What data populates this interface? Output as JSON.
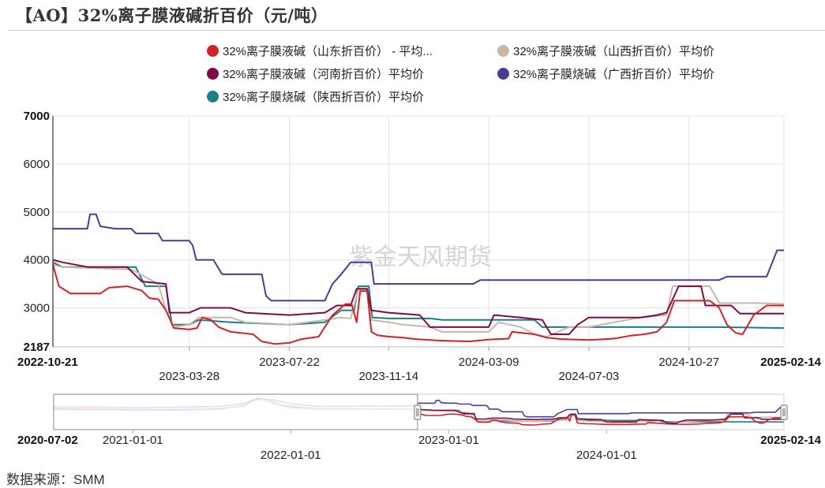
{
  "title": "【AO】32%离子膜液碱折百价（元/吨）",
  "watermark": "紫金天风期货",
  "source": "数据来源：SMM",
  "chart_data": {
    "type": "line",
    "title": "【AO】32%离子膜液碱折百价（元/吨）",
    "ylim": [
      2187,
      7000
    ],
    "yticks": [
      2187,
      3000,
      4000,
      5000,
      6000,
      7000
    ],
    "xlim": [
      "2022-10-21",
      "2025-02-14"
    ],
    "xticks_bold": [
      "2022-10-21",
      "2025-02-14"
    ],
    "xticks": [
      "2023-03-28",
      "2023-07-22",
      "2023-11-14",
      "2024-03-09",
      "2024-07-03",
      "2024-10-27"
    ],
    "grid": true,
    "legend_position": "top",
    "series": [
      {
        "name": "32%离子膜液碱（山东折百价） - 平均...",
        "color": "#d32226",
        "points": [
          [
            "2022-10-21",
            3900
          ],
          [
            "2022-10-28",
            3450
          ],
          [
            "2022-11-10",
            3300
          ],
          [
            "2022-12-15",
            3300
          ],
          [
            "2022-12-25",
            3420
          ],
          [
            "2023-01-15",
            3450
          ],
          [
            "2023-02-01",
            3360
          ],
          [
            "2023-02-10",
            3200
          ],
          [
            "2023-02-20",
            3180
          ],
          [
            "2023-03-01",
            2950
          ],
          [
            "2023-03-10",
            2580
          ],
          [
            "2023-03-28",
            2550
          ],
          [
            "2023-04-06",
            2580
          ],
          [
            "2023-04-12",
            2800
          ],
          [
            "2023-04-22",
            2750
          ],
          [
            "2023-05-01",
            2600
          ],
          [
            "2023-05-15",
            2500
          ],
          [
            "2023-06-10",
            2450
          ],
          [
            "2023-06-20",
            2300
          ],
          [
            "2023-07-05",
            2250
          ],
          [
            "2023-07-22",
            2270
          ],
          [
            "2023-08-05",
            2350
          ],
          [
            "2023-08-25",
            2400
          ],
          [
            "2023-09-10",
            2850
          ],
          [
            "2023-09-25",
            3080
          ],
          [
            "2023-10-02",
            3080
          ],
          [
            "2023-10-08",
            2700
          ],
          [
            "2023-10-12",
            3350
          ],
          [
            "2023-10-20",
            3350
          ],
          [
            "2023-10-25",
            2500
          ],
          [
            "2023-11-01",
            2430
          ],
          [
            "2023-11-14",
            2400
          ],
          [
            "2023-12-01",
            2380
          ],
          [
            "2023-12-15",
            2350
          ],
          [
            "2024-01-10",
            2320
          ],
          [
            "2024-02-15",
            2300
          ],
          [
            "2024-03-09",
            2340
          ],
          [
            "2024-04-01",
            2360
          ],
          [
            "2024-04-05",
            2500
          ],
          [
            "2024-05-01",
            2450
          ],
          [
            "2024-05-15",
            2380
          ],
          [
            "2024-06-01",
            2350
          ],
          [
            "2024-07-03",
            2330
          ],
          [
            "2024-08-01",
            2360
          ],
          [
            "2024-08-20",
            2420
          ],
          [
            "2024-09-05",
            2450
          ],
          [
            "2024-09-20",
            2500
          ],
          [
            "2024-10-01",
            2700
          ],
          [
            "2024-10-10",
            3150
          ],
          [
            "2024-11-20",
            3150
          ],
          [
            "2024-12-01",
            3000
          ],
          [
            "2024-12-10",
            2650
          ],
          [
            "2024-12-20",
            2480
          ],
          [
            "2024-12-28",
            2450
          ],
          [
            "2025-01-10",
            2850
          ],
          [
            "2025-01-25",
            3050
          ],
          [
            "2025-02-14",
            3050
          ]
        ]
      },
      {
        "name": "32%离子膜液碱（山西折百价）平均价",
        "color": "#c8b7a6",
        "points": [
          [
            "2022-10-21",
            3900
          ],
          [
            "2022-11-01",
            3850
          ],
          [
            "2023-01-20",
            3800
          ],
          [
            "2023-02-20",
            3500
          ],
          [
            "2023-03-01",
            2950
          ],
          [
            "2023-03-10",
            2600
          ],
          [
            "2023-03-28",
            2650
          ],
          [
            "2023-04-08",
            2800
          ],
          [
            "2023-05-15",
            2800
          ],
          [
            "2023-06-01",
            2700
          ],
          [
            "2023-07-22",
            2650
          ],
          [
            "2023-09-01",
            2750
          ],
          [
            "2023-09-20",
            2800
          ],
          [
            "2023-10-01",
            2780
          ],
          [
            "2023-10-10",
            3380
          ],
          [
            "2023-10-20",
            3380
          ],
          [
            "2023-10-25",
            2750
          ],
          [
            "2023-11-14",
            2700
          ],
          [
            "2023-12-01",
            2650
          ],
          [
            "2024-01-01",
            2600
          ],
          [
            "2024-01-15",
            2500
          ],
          [
            "2024-03-09",
            2500
          ],
          [
            "2024-03-20",
            2700
          ],
          [
            "2024-04-15",
            2600
          ],
          [
            "2024-05-01",
            2450
          ],
          [
            "2024-05-15",
            2400
          ],
          [
            "2024-06-10",
            2600
          ],
          [
            "2024-07-03",
            2600
          ],
          [
            "2024-08-01",
            2700
          ],
          [
            "2024-09-01",
            2800
          ],
          [
            "2024-10-01",
            2850
          ],
          [
            "2024-10-08",
            3450
          ],
          [
            "2024-11-20",
            3450
          ],
          [
            "2024-12-01",
            3100
          ],
          [
            "2025-01-15",
            3100
          ],
          [
            "2025-02-14",
            3080
          ]
        ]
      },
      {
        "name": "32%离子膜液碱（河南折百价）平均价",
        "color": "#7b0c47",
        "points": [
          [
            "2022-10-21",
            4000
          ],
          [
            "2022-11-01",
            3950
          ],
          [
            "2022-12-01",
            3850
          ],
          [
            "2023-01-15",
            3850
          ],
          [
            "2023-02-01",
            3550
          ],
          [
            "2023-03-01",
            3500
          ],
          [
            "2023-03-05",
            2900
          ],
          [
            "2023-03-28",
            2900
          ],
          [
            "2023-04-10",
            3000
          ],
          [
            "2023-05-15",
            3000
          ],
          [
            "2023-06-01",
            2900
          ],
          [
            "2023-07-22",
            2850
          ],
          [
            "2023-09-01",
            2900
          ],
          [
            "2023-09-15",
            3050
          ],
          [
            "2023-10-01",
            3050
          ],
          [
            "2023-10-08",
            3400
          ],
          [
            "2023-10-20",
            3400
          ],
          [
            "2023-10-25",
            2950
          ],
          [
            "2023-11-14",
            2900
          ],
          [
            "2023-12-20",
            2850
          ],
          [
            "2024-01-01",
            2600
          ],
          [
            "2024-03-09",
            2600
          ],
          [
            "2024-03-15",
            2850
          ],
          [
            "2024-04-15",
            2800
          ],
          [
            "2024-05-10",
            2750
          ],
          [
            "2024-05-20",
            2450
          ],
          [
            "2024-06-10",
            2450
          ],
          [
            "2024-06-20",
            2650
          ],
          [
            "2024-07-03",
            2800
          ],
          [
            "2024-09-01",
            2800
          ],
          [
            "2024-09-20",
            2850
          ],
          [
            "2024-10-01",
            2900
          ],
          [
            "2024-10-15",
            3450
          ],
          [
            "2024-11-10",
            3450
          ],
          [
            "2024-11-15",
            3050
          ],
          [
            "2024-12-15",
            3050
          ],
          [
            "2024-12-25",
            2880
          ],
          [
            "2025-02-14",
            2880
          ]
        ]
      },
      {
        "name": "32%离子膜烧碱（广西折百价）平均价",
        "color": "#4b3b97",
        "points": [
          [
            "2022-10-21",
            4650
          ],
          [
            "2022-11-30",
            4650
          ],
          [
            "2022-12-03",
            4950
          ],
          [
            "2022-12-10",
            4950
          ],
          [
            "2022-12-15",
            4700
          ],
          [
            "2023-01-01",
            4650
          ],
          [
            "2023-01-20",
            4650
          ],
          [
            "2023-01-25",
            4550
          ],
          [
            "2023-02-20",
            4550
          ],
          [
            "2023-02-25",
            4400
          ],
          [
            "2023-03-28",
            4400
          ],
          [
            "2023-04-01",
            4300
          ],
          [
            "2023-04-05",
            4000
          ],
          [
            "2023-04-25",
            4000
          ],
          [
            "2023-05-05",
            3700
          ],
          [
            "2023-06-20",
            3700
          ],
          [
            "2023-06-25",
            3250
          ],
          [
            "2023-07-01",
            3150
          ],
          [
            "2023-09-01",
            3150
          ],
          [
            "2023-09-10",
            3500
          ],
          [
            "2023-09-20",
            3700
          ],
          [
            "2023-10-01",
            3950
          ],
          [
            "2023-10-25",
            3950
          ],
          [
            "2023-10-28",
            3500
          ],
          [
            "2023-11-14",
            3500
          ],
          [
            "2024-02-20",
            3500
          ],
          [
            "2024-02-28",
            3580
          ],
          [
            "2024-12-01",
            3580
          ],
          [
            "2024-12-10",
            3650
          ],
          [
            "2025-01-25",
            3650
          ],
          [
            "2025-02-06",
            4200
          ],
          [
            "2025-02-14",
            4200
          ]
        ]
      },
      {
        "name": "32%离子膜烧碱（陕西折百价）平均价",
        "color": "#1a7f86",
        "points": [
          [
            "2022-10-21",
            3950
          ],
          [
            "2022-11-01",
            3850
          ],
          [
            "2023-01-25",
            3850
          ],
          [
            "2023-02-05",
            3450
          ],
          [
            "2023-03-01",
            3450
          ],
          [
            "2023-03-08",
            2650
          ],
          [
            "2023-03-28",
            2650
          ],
          [
            "2023-04-08",
            2750
          ],
          [
            "2023-05-15",
            2700
          ],
          [
            "2023-07-22",
            2650
          ],
          [
            "2023-09-01",
            2700
          ],
          [
            "2023-09-20",
            2950
          ],
          [
            "2023-10-05",
            2950
          ],
          [
            "2023-10-10",
            3450
          ],
          [
            "2023-10-22",
            3450
          ],
          [
            "2023-10-26",
            2800
          ],
          [
            "2023-11-14",
            2780
          ],
          [
            "2024-01-01",
            2780
          ],
          [
            "2024-01-15",
            2750
          ],
          [
            "2024-05-01",
            2750
          ],
          [
            "2024-05-10",
            2600
          ],
          [
            "2024-12-01",
            2600
          ],
          [
            "2025-02-14",
            2580
          ]
        ]
      }
    ],
    "navigator": {
      "range": [
        "2020-07-02",
        "2025-02-14"
      ],
      "selected": [
        "2022-10-21",
        "2025-02-14"
      ],
      "ticks_bold": [
        "2020-07-02",
        "2025-02-14"
      ],
      "ticks": [
        "2021-01-01",
        "2022-01-01",
        "2023-01-01",
        "2024-01-01"
      ]
    }
  }
}
